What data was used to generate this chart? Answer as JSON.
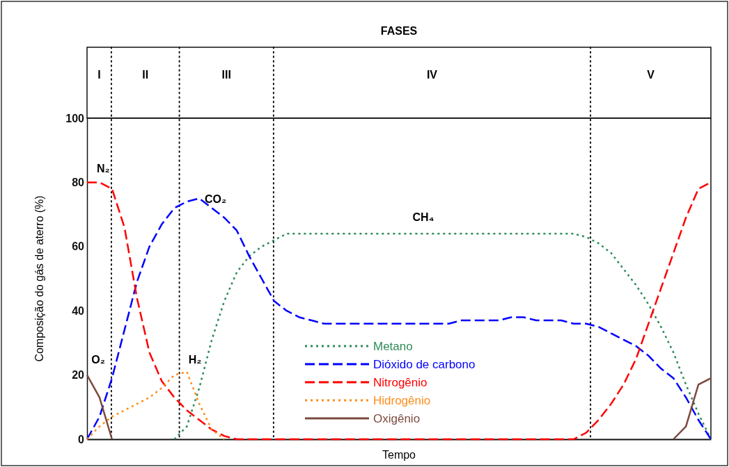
{
  "chart_data": {
    "type": "line",
    "title": "FASES",
    "xlabel": "Tempo",
    "ylabel": "Composição do gás de aterro (%)",
    "categories": [
      null,
      null,
      null,
      null,
      null,
      null,
      null,
      null,
      null,
      null,
      null,
      null,
      null,
      null,
      null,
      null,
      null,
      null,
      null,
      null,
      null,
      null,
      null,
      null,
      null,
      null,
      null,
      null,
      null,
      null,
      null,
      null,
      null,
      null,
      null,
      null,
      null,
      null,
      null,
      null,
      null,
      null,
      null,
      null,
      null,
      null,
      null,
      null,
      null,
      null,
      null
    ],
    "ylim": [
      0,
      100
    ],
    "yticks": [
      0,
      20,
      40,
      60,
      80,
      100
    ],
    "tick_labels": "y",
    "legend": "bottom",
    "series": [
      {
        "name": "Metano",
        "color": "#2e8b57",
        "line_style": "dotted",
        "values": [
          null,
          null,
          null,
          null,
          null,
          null,
          null,
          0,
          4,
          16,
          31,
          43,
          52,
          57,
          60,
          62,
          64,
          64,
          64,
          64,
          64,
          64,
          64,
          64,
          64,
          64,
          64,
          64,
          64,
          64,
          64,
          64,
          64,
          64,
          64,
          64,
          64,
          64,
          64,
          64,
          63,
          61,
          58,
          53,
          48,
          42,
          35,
          27,
          17,
          8,
          0
        ]
      },
      {
        "name": "Dióxido de carbono",
        "color": "#0000ff",
        "line_style": "dashed",
        "values": [
          0,
          7,
          19,
          34,
          49,
          60,
          67,
          72,
          74,
          75,
          72,
          69,
          65,
          57,
          50,
          43,
          40,
          38,
          37,
          36,
          36,
          36,
          36,
          36,
          36,
          36,
          36,
          36,
          36,
          36,
          37,
          37,
          37,
          37,
          38,
          38,
          37,
          37,
          37,
          36,
          36,
          35,
          33,
          31,
          29,
          26,
          22,
          19,
          13,
          6,
          0
        ]
      },
      {
        "name": "Nitrogênio",
        "color": "#ff0000",
        "line_style": "dashed",
        "values": [
          80,
          80,
          78,
          66,
          44,
          27,
          18,
          13,
          9,
          6,
          3,
          1,
          0,
          0,
          0,
          0,
          0,
          0,
          0,
          0,
          0,
          0,
          0,
          0,
          0,
          0,
          0,
          0,
          0,
          0,
          0,
          0,
          0,
          0,
          0,
          0,
          0,
          0,
          0,
          0,
          2,
          6,
          11,
          17,
          25,
          36,
          47,
          58,
          69,
          78,
          80
        ]
      },
      {
        "name": "Hidrogênio",
        "color": "#ff8c1a",
        "line_style": "dotted",
        "values": [
          0,
          4,
          7,
          9,
          11,
          13,
          16,
          20,
          21,
          11,
          3,
          0,
          null,
          null,
          null,
          null,
          null,
          null,
          null,
          null,
          null,
          null,
          null,
          null,
          null,
          null,
          null,
          null,
          null,
          null,
          null,
          null,
          null,
          null,
          null,
          null,
          null,
          null,
          null,
          null,
          null,
          null,
          null,
          null,
          null,
          null,
          null,
          null,
          null,
          null,
          null
        ]
      },
      {
        "name": "Oxigênio",
        "color": "#7b4a3f",
        "line_style": "solid",
        "values": [
          20,
          13,
          0,
          null,
          null,
          null,
          null,
          null,
          null,
          null,
          null,
          null,
          null,
          null,
          null,
          null,
          null,
          null,
          null,
          null,
          null,
          null,
          null,
          null,
          null,
          null,
          null,
          null,
          null,
          null,
          null,
          null,
          null,
          null,
          null,
          null,
          null,
          null,
          null,
          null,
          null,
          null,
          null,
          null,
          null,
          null,
          null,
          0,
          4,
          17,
          19
        ]
      }
    ],
    "annotations": [
      "I",
      "II",
      "III",
      "IV",
      "V",
      "N₂",
      "CO₂",
      "CH₄",
      "H₂",
      "O₂"
    ]
  }
}
